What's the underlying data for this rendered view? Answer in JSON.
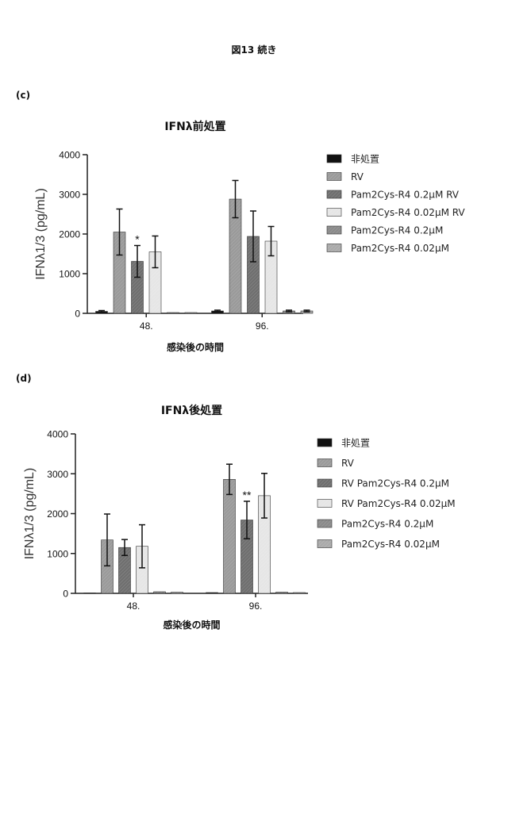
{
  "page_title": "図13 続き",
  "colors": {
    "axis": "#222222",
    "untreated": "#111111",
    "rv": "#9a9a9a",
    "dark": "#6f6f6f",
    "light": "#e6e6e6",
    "treat": "#8a8a8a",
    "treat_low": "#aaaaaa"
  },
  "chart_data": [
    {
      "panel": "(c)",
      "type": "bar",
      "title": "IFNλ前処置",
      "xlabel": "感染後の時間",
      "ylabel": "IFNλ1/3 (pg/mL)",
      "ylim": [
        0,
        4000
      ],
      "yticks": [
        "0",
        "1000",
        "2000",
        "3000",
        "4000"
      ],
      "categories": [
        "48.",
        "96."
      ],
      "legend_position": "right",
      "series": [
        {
          "name": "非処置",
          "color_key": "untreated",
          "values": [
            50,
            60
          ],
          "errors": [
            20,
            20
          ]
        },
        {
          "name": "RV",
          "color_key": "rv",
          "values": [
            2050,
            2880
          ],
          "errors": [
            580,
            470
          ]
        },
        {
          "name": "Pam2Cys-R4 0.2µM RV",
          "color_key": "dark",
          "values": [
            1310,
            1940
          ],
          "errors": [
            400,
            640
          ]
        },
        {
          "name": "Pam2Cys-R4 0.02µM RV",
          "color_key": "light",
          "values": [
            1550,
            1820
          ],
          "errors": [
            400,
            370
          ]
        },
        {
          "name": "Pam2Cys-R4 0.2µM",
          "color_key": "treat",
          "values": [
            20,
            60
          ],
          "errors": [
            0,
            20
          ]
        },
        {
          "name": "Pam2Cys-R4 0.02µM",
          "color_key": "treat_low",
          "values": [
            20,
            60
          ],
          "errors": [
            0,
            20
          ]
        }
      ],
      "annotations": [
        {
          "text": "*",
          "category": 0,
          "series": 2
        }
      ]
    },
    {
      "panel": "(d)",
      "type": "bar",
      "title": "IFNλ後処置",
      "xlabel": "感染後の時間",
      "ylabel": "IFNλ1/3 (pg/mL)",
      "ylim": [
        0,
        4000
      ],
      "yticks": [
        "0",
        "1000",
        "2000",
        "3000",
        "4000"
      ],
      "categories": [
        "48.",
        "96."
      ],
      "legend_position": "right",
      "series": [
        {
          "name": "非処置",
          "color_key": "untreated",
          "values": [
            10,
            20
          ],
          "errors": [
            0,
            0
          ]
        },
        {
          "name": "RV",
          "color_key": "rv",
          "values": [
            1340,
            2860
          ],
          "errors": [
            650,
            380
          ]
        },
        {
          "name": "RV Pam2Cys-R4 0.2µM",
          "color_key": "dark",
          "values": [
            1150,
            1840
          ],
          "errors": [
            200,
            470
          ]
        },
        {
          "name": "RV Pam2Cys-R4 0.02µM",
          "color_key": "light",
          "values": [
            1180,
            2450
          ],
          "errors": [
            540,
            560
          ]
        },
        {
          "name": "Pam2Cys-R4 0.2µM",
          "color_key": "treat",
          "values": [
            40,
            30
          ],
          "errors": [
            0,
            0
          ]
        },
        {
          "name": "Pam2Cys-R4 0.02µM",
          "color_key": "treat_low",
          "values": [
            30,
            20
          ],
          "errors": [
            0,
            0
          ]
        }
      ],
      "annotations": [
        {
          "text": "**",
          "category": 1,
          "series": 2
        }
      ]
    }
  ]
}
